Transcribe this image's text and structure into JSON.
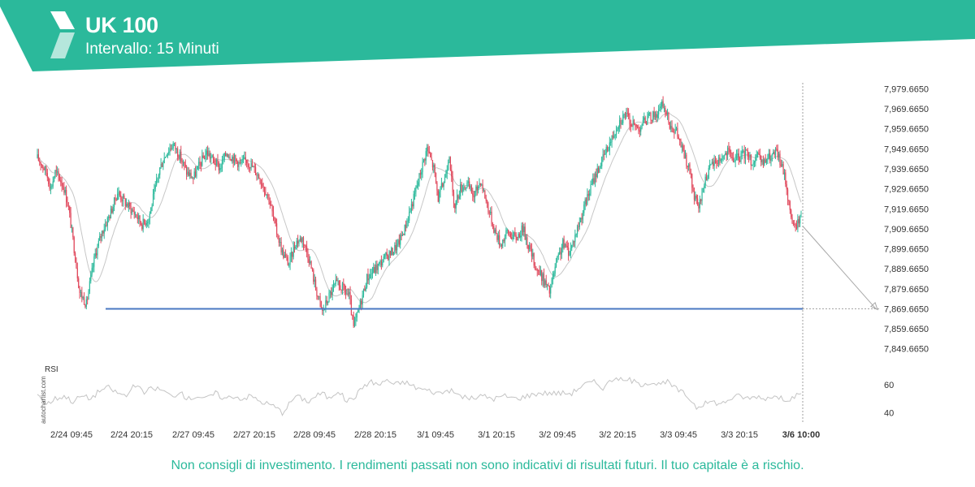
{
  "header": {
    "title": "UK 100",
    "subtitle": "Intervallo: 15 Minuti",
    "brand_color": "#2bb99b"
  },
  "footer": {
    "disclaimer": "Non consigli di investimento. I rendimenti passati non sono indicativi di risultati futuri. Il tuo capitale è a rischio.",
    "watermark": "autochartist.com"
  },
  "chart_data": {
    "type": "candlestick",
    "interval": "15 Minuti",
    "y_ticks": [
      7979.665,
      7969.665,
      7959.665,
      7949.665,
      7939.665,
      7929.665,
      7919.665,
      7909.665,
      7899.665,
      7889.665,
      7879.665,
      7869.665,
      7859.665,
      7849.665
    ],
    "y_tick_labels": [
      "7,979.6650",
      "7,969.6650",
      "7,959.6650",
      "7,949.6650",
      "7,939.6650",
      "7,929.6650",
      "7,919.6650",
      "7,909.6650",
      "7,899.6650",
      "7,889.6650",
      "7,879.6650",
      "7,869.6650",
      "7,859.6650",
      "7,849.6650"
    ],
    "ylim": [
      7845.5,
      7983.5
    ],
    "x_tick_labels": [
      "2/24 09:45",
      "2/24 20:15",
      "2/27 09:45",
      "2/27 20:15",
      "2/28 09:45",
      "2/28 20:15",
      "3/1 09:45",
      "3/1 20:15",
      "3/2 09:45",
      "3/2 20:15",
      "3/3 09:45",
      "3/3 20:15",
      "3/6 10:00"
    ],
    "current_time_label": "3/6 10:00",
    "support_level": 7869.665,
    "support_label": "7,869.6650",
    "forecast": {
      "from": 7911,
      "to": 7869.665
    },
    "colors": {
      "up": "#2bb99b",
      "down": "#e0475b",
      "support": "#4a78c2",
      "moving_average": "#c7c7c7",
      "rsi": "#c4c4c4"
    },
    "price_path": [
      [
        0,
        7945
      ],
      [
        3,
        7943
      ],
      [
        8,
        7938
      ],
      [
        12,
        7930
      ],
      [
        16,
        7938
      ],
      [
        20,
        7935
      ],
      [
        24,
        7930
      ],
      [
        28,
        7920
      ],
      [
        33,
        7900
      ],
      [
        38,
        7878
      ],
      [
        44,
        7872
      ],
      [
        48,
        7885
      ],
      [
        52,
        7897
      ],
      [
        58,
        7908
      ],
      [
        66,
        7918
      ],
      [
        72,
        7928
      ],
      [
        80,
        7922
      ],
      [
        88,
        7917
      ],
      [
        94,
        7912
      ],
      [
        100,
        7915
      ],
      [
        104,
        7925
      ],
      [
        110,
        7940
      ],
      [
        116,
        7948
      ],
      [
        122,
        7952
      ],
      [
        128,
        7946
      ],
      [
        134,
        7938
      ],
      [
        140,
        7935
      ],
      [
        146,
        7942
      ],
      [
        152,
        7948
      ],
      [
        158,
        7944
      ],
      [
        164,
        7940
      ],
      [
        170,
        7948
      ],
      [
        176,
        7945
      ],
      [
        182,
        7942
      ],
      [
        188,
        7944
      ],
      [
        194,
        7940
      ],
      [
        200,
        7935
      ],
      [
        208,
        7925
      ],
      [
        214,
        7910
      ],
      [
        220,
        7898
      ],
      [
        226,
        7892
      ],
      [
        232,
        7903
      ],
      [
        238,
        7905
      ],
      [
        244,
        7895
      ],
      [
        250,
        7880
      ],
      [
        256,
        7868
      ],
      [
        262,
        7876
      ],
      [
        268,
        7882
      ],
      [
        274,
        7880
      ],
      [
        280,
        7876
      ],
      [
        284,
        7860
      ],
      [
        290,
        7872
      ],
      [
        296,
        7885
      ],
      [
        304,
        7890
      ],
      [
        312,
        7895
      ],
      [
        318,
        7898
      ],
      [
        324,
        7902
      ],
      [
        330,
        7910
      ],
      [
        338,
        7925
      ],
      [
        346,
        7942
      ],
      [
        350,
        7950
      ],
      [
        356,
        7940
      ],
      [
        360,
        7925
      ],
      [
        366,
        7935
      ],
      [
        370,
        7948
      ],
      [
        374,
        7920
      ],
      [
        380,
        7930
      ],
      [
        386,
        7932
      ],
      [
        392,
        7926
      ],
      [
        398,
        7934
      ],
      [
        404,
        7922
      ],
      [
        410,
        7910
      ],
      [
        416,
        7902
      ],
      [
        422,
        7908
      ],
      [
        430,
        7905
      ],
      [
        436,
        7910
      ],
      [
        442,
        7900
      ],
      [
        448,
        7890
      ],
      [
        454,
        7885
      ],
      [
        460,
        7878
      ],
      [
        466,
        7892
      ],
      [
        472,
        7902
      ],
      [
        478,
        7898
      ],
      [
        484,
        7908
      ],
      [
        492,
        7922
      ],
      [
        500,
        7935
      ],
      [
        508,
        7945
      ],
      [
        516,
        7955
      ],
      [
        522,
        7963
      ],
      [
        528,
        7967
      ],
      [
        534,
        7962
      ],
      [
        540,
        7960
      ],
      [
        546,
        7964
      ],
      [
        552,
        7966
      ],
      [
        558,
        7968
      ],
      [
        562,
        7972
      ],
      [
        568,
        7962
      ],
      [
        574,
        7958
      ],
      [
        580,
        7948
      ],
      [
        586,
        7938
      ],
      [
        590,
        7925
      ],
      [
        594,
        7920
      ],
      [
        600,
        7935
      ],
      [
        606,
        7942
      ],
      [
        614,
        7945
      ],
      [
        620,
        7948
      ],
      [
        626,
        7944
      ],
      [
        632,
        7946
      ],
      [
        638,
        7948
      ],
      [
        642,
        7942
      ],
      [
        646,
        7946
      ],
      [
        652,
        7942
      ],
      [
        656,
        7945
      ],
      [
        660,
        7946
      ],
      [
        664,
        7948
      ],
      [
        668,
        7942
      ],
      [
        672,
        7934
      ],
      [
        676,
        7918
      ],
      [
        680,
        7910
      ],
      [
        686,
        7916
      ]
    ],
    "rsi": {
      "label": "RSI",
      "ticks": [
        60,
        40
      ],
      "ylim": [
        32,
        74
      ],
      "path": [
        [
          0,
          54
        ],
        [
          8,
          46
        ],
        [
          16,
          50
        ],
        [
          24,
          52
        ],
        [
          32,
          48
        ],
        [
          40,
          52
        ],
        [
          48,
          50
        ],
        [
          56,
          56
        ],
        [
          64,
          58
        ],
        [
          72,
          54
        ],
        [
          80,
          52
        ],
        [
          88,
          60
        ],
        [
          96,
          54
        ],
        [
          104,
          58
        ],
        [
          112,
          56
        ],
        [
          120,
          52
        ],
        [
          128,
          54
        ],
        [
          136,
          50
        ],
        [
          144,
          52
        ],
        [
          152,
          50
        ],
        [
          160,
          54
        ],
        [
          168,
          50
        ],
        [
          176,
          52
        ],
        [
          184,
          50
        ],
        [
          192,
          52
        ],
        [
          200,
          48
        ],
        [
          208,
          46
        ],
        [
          214,
          44
        ],
        [
          220,
          40
        ],
        [
          226,
          46
        ],
        [
          232,
          52
        ],
        [
          238,
          50
        ],
        [
          244,
          48
        ],
        [
          250,
          52
        ],
        [
          256,
          54
        ],
        [
          262,
          50
        ],
        [
          270,
          56
        ],
        [
          278,
          48
        ],
        [
          286,
          52
        ],
        [
          294,
          60
        ],
        [
          300,
          62
        ],
        [
          308,
          60
        ],
        [
          314,
          64
        ],
        [
          320,
          60
        ],
        [
          330,
          62
        ],
        [
          340,
          58
        ],
        [
          350,
          56
        ],
        [
          360,
          54
        ],
        [
          370,
          56
        ],
        [
          380,
          52
        ],
        [
          390,
          50
        ],
        [
          400,
          52
        ],
        [
          410,
          50
        ],
        [
          420,
          52
        ],
        [
          430,
          50
        ],
        [
          440,
          52
        ],
        [
          450,
          54
        ],
        [
          460,
          54
        ],
        [
          470,
          54
        ],
        [
          480,
          54
        ],
        [
          490,
          60
        ],
        [
          500,
          62
        ],
        [
          508,
          58
        ],
        [
          514,
          62
        ],
        [
          520,
          66
        ],
        [
          526,
          62
        ],
        [
          532,
          64
        ],
        [
          540,
          60
        ],
        [
          550,
          62
        ],
        [
          560,
          60
        ],
        [
          566,
          62
        ],
        [
          572,
          58
        ],
        [
          580,
          54
        ],
        [
          586,
          50
        ],
        [
          592,
          44
        ],
        [
          598,
          46
        ],
        [
          606,
          48
        ],
        [
          614,
          46
        ],
        [
          622,
          50
        ],
        [
          630,
          52
        ],
        [
          640,
          50
        ],
        [
          646,
          52
        ],
        [
          652,
          50
        ],
        [
          660,
          52
        ],
        [
          668,
          50
        ],
        [
          676,
          50
        ],
        [
          682,
          52
        ],
        [
          686,
          52
        ]
      ]
    }
  }
}
